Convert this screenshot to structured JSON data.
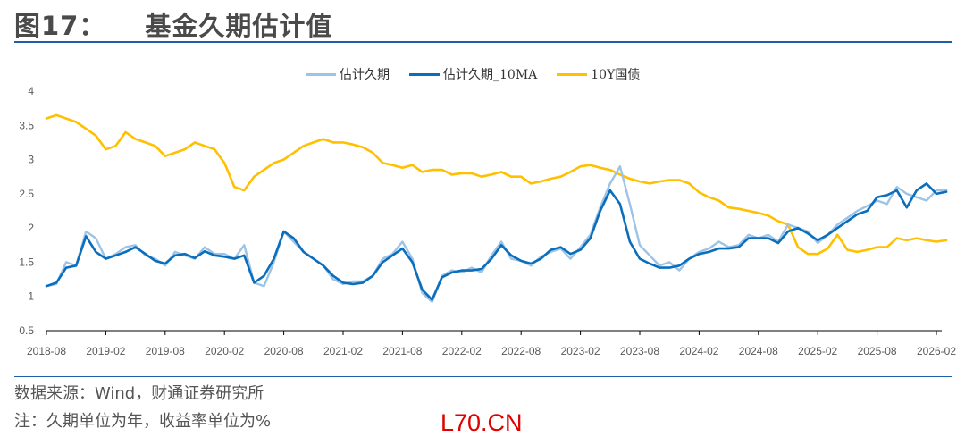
{
  "header": {
    "figure_number": "图17：",
    "title": "基金久期估计值"
  },
  "footer": {
    "source": "数据来源：Wind，财通证券研究所",
    "note": "注：久期单位为年，收益率单位为%",
    "watermark": "L70.CN"
  },
  "chart_data": {
    "type": "line",
    "title": "基金久期估计值",
    "xlabel": "",
    "ylabel": "",
    "ylim": [
      0.5,
      4
    ],
    "yticks": [
      "4",
      "3.5",
      "3",
      "2.5",
      "2",
      "1.5",
      "1",
      "0.5"
    ],
    "ytick_values": [
      4,
      3.5,
      3,
      2.5,
      2,
      1.5,
      1,
      0.5
    ],
    "xticks": [
      "2018-08",
      "2019-02",
      "2019-08",
      "2020-02",
      "2020-08",
      "2021-02",
      "2021-08",
      "2022-02",
      "2022-08",
      "2023-02",
      "2023-08",
      "2024-02",
      "2024-08",
      "2025-02",
      "2025-08",
      "2026-02"
    ],
    "xtick_months": [
      0,
      6,
      12,
      18,
      24,
      30,
      36,
      42,
      48,
      54,
      60,
      66,
      72,
      78,
      84,
      90
    ],
    "x_unit": "months since 2018-08",
    "x": [
      0,
      1,
      2,
      3,
      4,
      5,
      6,
      7,
      8,
      9,
      10,
      11,
      12,
      13,
      14,
      15,
      16,
      17,
      18,
      19,
      20,
      21,
      22,
      23,
      24,
      25,
      26,
      27,
      28,
      29,
      30,
      31,
      32,
      33,
      34,
      35,
      36,
      37,
      38,
      39,
      40,
      41,
      42,
      43,
      44,
      45,
      46,
      47,
      48,
      49,
      50,
      51,
      52,
      53,
      54,
      55,
      56,
      57,
      58,
      59,
      60,
      61,
      62,
      63,
      64,
      65,
      66,
      67,
      68,
      69,
      70,
      71,
      72,
      73,
      74,
      75,
      76,
      77,
      78,
      79,
      80,
      81,
      82,
      83,
      84,
      85,
      86,
      87,
      88,
      89,
      90,
      91
    ],
    "grid": false,
    "legend": "top-center",
    "legend_entries": [
      "估计久期",
      "估计久期_10MA",
      "10Y国债"
    ],
    "colors": {
      "估计久期": "#9dc3e6",
      "估计久期_10MA": "#0a6ebd",
      "10Y国债": "#ffc000"
    },
    "series": [
      {
        "name": "估计久期",
        "values": [
          1.15,
          1.18,
          1.5,
          1.45,
          1.95,
          1.85,
          1.55,
          1.62,
          1.72,
          1.75,
          1.6,
          1.55,
          1.45,
          1.65,
          1.6,
          1.55,
          1.72,
          1.62,
          1.62,
          1.55,
          1.75,
          1.2,
          1.15,
          1.5,
          1.95,
          1.8,
          1.65,
          1.55,
          1.45,
          1.25,
          1.18,
          1.22,
          1.22,
          1.3,
          1.55,
          1.62,
          1.8,
          1.55,
          1.05,
          0.92,
          1.3,
          1.38,
          1.35,
          1.42,
          1.35,
          1.6,
          1.8,
          1.55,
          1.52,
          1.45,
          1.58,
          1.65,
          1.7,
          1.55,
          1.72,
          1.9,
          2.3,
          2.65,
          2.9,
          2.35,
          1.75,
          1.6,
          1.45,
          1.5,
          1.38,
          1.55,
          1.65,
          1.7,
          1.8,
          1.72,
          1.75,
          1.9,
          1.85,
          1.9,
          1.8,
          2.05,
          2.0,
          1.95,
          1.78,
          1.9,
          2.05,
          2.15,
          2.25,
          2.32,
          2.4,
          2.35,
          2.6,
          2.5,
          2.45,
          2.4,
          2.55,
          2.55
        ],
        "note_values_approx": true
      },
      {
        "name": "估计久期_10MA",
        "values": [
          1.15,
          1.2,
          1.42,
          1.45,
          1.88,
          1.65,
          1.55,
          1.6,
          1.65,
          1.72,
          1.62,
          1.52,
          1.48,
          1.6,
          1.62,
          1.56,
          1.66,
          1.6,
          1.58,
          1.55,
          1.6,
          1.2,
          1.3,
          1.55,
          1.95,
          1.85,
          1.65,
          1.55,
          1.45,
          1.3,
          1.2,
          1.18,
          1.2,
          1.3,
          1.5,
          1.6,
          1.7,
          1.5,
          1.1,
          0.95,
          1.28,
          1.35,
          1.38,
          1.38,
          1.4,
          1.55,
          1.75,
          1.6,
          1.52,
          1.48,
          1.55,
          1.68,
          1.72,
          1.62,
          1.68,
          1.85,
          2.25,
          2.55,
          2.35,
          1.8,
          1.55,
          1.48,
          1.42,
          1.42,
          1.45,
          1.55,
          1.62,
          1.65,
          1.7,
          1.7,
          1.72,
          1.85,
          1.85,
          1.85,
          1.78,
          1.95,
          2.0,
          1.92,
          1.82,
          1.9,
          2.0,
          2.1,
          2.2,
          2.25,
          2.45,
          2.48,
          2.55,
          2.3,
          2.55,
          2.65,
          2.5,
          2.53
        ],
        "note_values_approx": true
      },
      {
        "name": "10Y国债",
        "values": [
          3.6,
          3.65,
          3.6,
          3.55,
          3.45,
          3.35,
          3.15,
          3.2,
          3.4,
          3.3,
          3.25,
          3.2,
          3.05,
          3.1,
          3.15,
          3.25,
          3.2,
          3.15,
          2.95,
          2.6,
          2.55,
          2.75,
          2.85,
          2.95,
          3.0,
          3.1,
          3.2,
          3.25,
          3.3,
          3.25,
          3.25,
          3.22,
          3.18,
          3.1,
          2.95,
          2.92,
          2.88,
          2.92,
          2.82,
          2.85,
          2.85,
          2.78,
          2.8,
          2.8,
          2.75,
          2.78,
          2.82,
          2.75,
          2.75,
          2.65,
          2.68,
          2.72,
          2.75,
          2.82,
          2.9,
          2.92,
          2.88,
          2.85,
          2.78,
          2.72,
          2.68,
          2.65,
          2.68,
          2.7,
          2.7,
          2.65,
          2.52,
          2.45,
          2.4,
          2.3,
          2.28,
          2.25,
          2.22,
          2.18,
          2.1,
          2.05,
          1.72,
          1.62,
          1.62,
          1.7,
          1.9,
          1.68,
          1.65,
          1.68,
          1.72,
          1.72,
          1.85,
          1.82,
          1.85,
          1.82,
          1.8,
          1.82
        ],
        "note_values_approx": true
      }
    ]
  }
}
